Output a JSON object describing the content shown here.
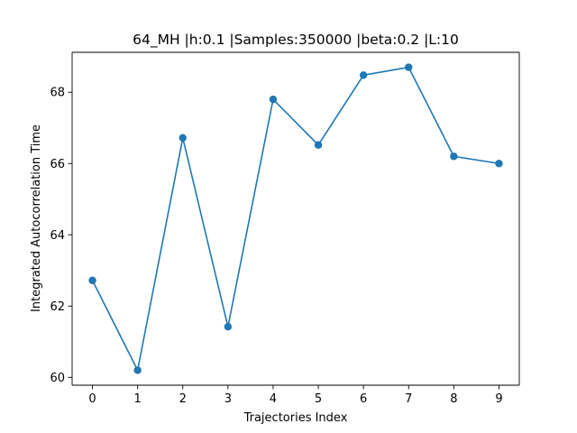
{
  "chart_data": {
    "type": "line",
    "title": "64_MH |h:0.1 |Samples:350000 |beta:0.2 |L:10",
    "xlabel": "Trajectories Index",
    "ylabel": "Integrated Autocorrelation Time",
    "x": [
      0,
      1,
      2,
      3,
      4,
      5,
      6,
      7,
      8,
      9
    ],
    "series": [
      {
        "values": [
          62.72,
          60.2,
          66.72,
          61.42,
          67.8,
          66.52,
          68.48,
          68.7,
          66.2,
          66.0
        ],
        "color": "#1f77b4",
        "marker": "circle"
      }
    ],
    "xticks": [
      0,
      1,
      2,
      3,
      4,
      5,
      6,
      7,
      8,
      9
    ],
    "yticks": [
      60,
      62,
      64,
      66,
      68
    ],
    "xlim": [
      -0.45,
      9.45
    ],
    "ylim": [
      59.78,
      69.12
    ],
    "grid": false,
    "legend": "none"
  }
}
